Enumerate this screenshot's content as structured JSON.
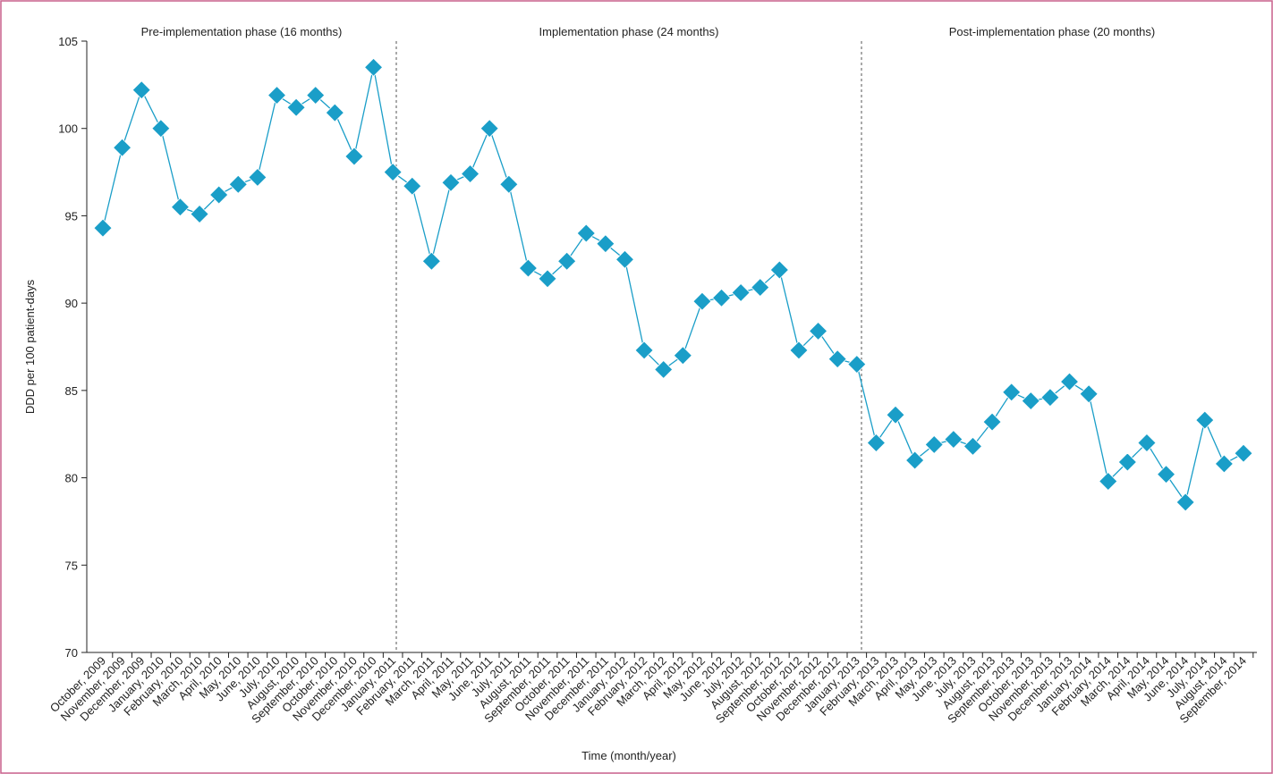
{
  "chart_data": {
    "type": "line",
    "xlabel": "Time (month/year)",
    "ylabel": "DDD per 100 patient-days",
    "annotations": [
      "Pre-implementation phase (16 months)",
      "Implementation phase (24 months)",
      "Post-implementation phase (20 months)"
    ],
    "categories": [
      "October, 2009",
      "November, 2009",
      "December, 2009",
      "January, 2010",
      "February, 2010",
      "March, 2010",
      "April, 2010",
      "May, 2010",
      "June, 2010",
      "July, 2010",
      "August, 2010",
      "September, 2010",
      "October, 2010",
      "November, 2010",
      "December, 2010",
      "January, 2011",
      "February, 2011",
      "March, 2011",
      "April, 2011",
      "May, 2011",
      "June, 2011",
      "July, 2011",
      "August, 2011",
      "September, 2011",
      "October, 2011",
      "November, 2011",
      "December, 2011",
      "January, 2012",
      "February, 2012",
      "March, 2012",
      "April, 2012",
      "May, 2012",
      "June, 2012",
      "July, 2012",
      "August, 2012",
      "September, 2012",
      "October, 2012",
      "November, 2012",
      "December, 2012",
      "January, 2013",
      "February, 2013",
      "March, 2013",
      "April, 2013",
      "May, 2013",
      "June, 2013",
      "July, 2013",
      "August, 2013",
      "September, 2013",
      "October, 2013",
      "November, 2013",
      "December, 2013",
      "January, 2014",
      "February, 2014",
      "March, 2014",
      "April, 2014",
      "May, 2014",
      "June, 2014",
      "July, 2014",
      "August, 2014",
      "September, 2014"
    ],
    "series": [
      {
        "name": "DDD per 100 patient-days",
        "color": "#1a9ec8",
        "values": [
          94.3,
          98.9,
          102.2,
          100.0,
          95.5,
          95.1,
          96.2,
          96.8,
          97.2,
          101.9,
          101.2,
          101.9,
          100.9,
          98.4,
          103.5,
          97.5,
          96.7,
          92.4,
          96.9,
          97.4,
          100.0,
          96.8,
          92.0,
          91.4,
          92.4,
          94.0,
          93.4,
          92.5,
          87.3,
          86.2,
          87.0,
          90.1,
          90.3,
          90.6,
          90.9,
          91.9,
          87.3,
          88.4,
          86.8,
          86.5,
          82.0,
          83.6,
          81.0,
          81.9,
          82.2,
          81.8,
          83.2,
          84.9,
          84.4,
          84.6,
          85.5,
          84.8,
          79.8,
          80.9,
          82.0,
          80.2,
          78.6,
          83.3,
          80.8,
          81.4
        ]
      }
    ],
    "ylim": [
      70,
      105
    ],
    "yticks": [
      70,
      75,
      80,
      85,
      90,
      95,
      100,
      105
    ]
  }
}
